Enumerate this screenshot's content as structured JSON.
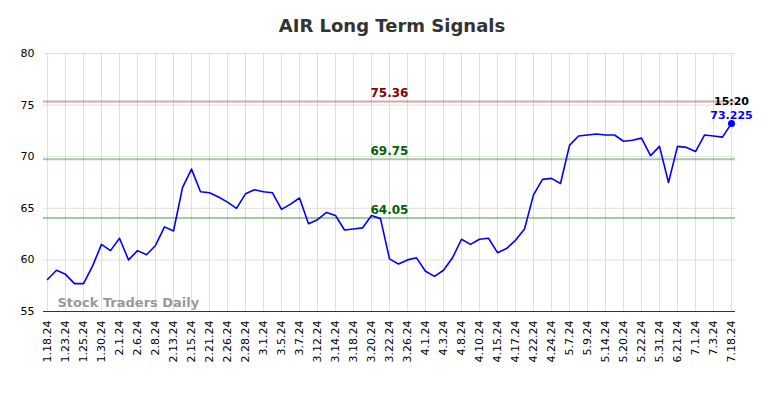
{
  "chart_data": {
    "type": "line",
    "title": "AIR Long Term Signals",
    "categories": [
      "1.18.24",
      null,
      "1.23.24",
      null,
      "1.25.24",
      null,
      "1.30.24",
      null,
      "2.1.24",
      null,
      "2.6.24",
      null,
      "2.8.24",
      null,
      "2.13.24",
      null,
      "2.15.24",
      null,
      "2.21.24",
      null,
      "2.26.24",
      null,
      "2.28.24",
      null,
      "3.1.24",
      null,
      "3.5.24",
      null,
      "3.7.24",
      null,
      "3.12.24",
      null,
      "3.14.24",
      null,
      "3.18.24",
      null,
      "3.20.24",
      null,
      "3.22.24",
      null,
      "3.26.24",
      null,
      "4.1.24",
      null,
      "4.3.24",
      null,
      "4.8.24",
      null,
      "4.10.24",
      null,
      "4.15.24",
      null,
      "4.17.24",
      null,
      "4.22.24",
      null,
      "4.24.24",
      null,
      "5.7.24",
      null,
      "5.9.24",
      null,
      "5.14.24",
      null,
      "5.20.24",
      null,
      "5.22.24",
      null,
      "5.31.24",
      null,
      "6.21.24",
      null,
      "7.1.24",
      null,
      "7.3.24",
      null,
      "7.18.24"
    ],
    "values": [
      58.1,
      59.0,
      58.6,
      57.7,
      57.7,
      59.4,
      61.5,
      60.9,
      62.1,
      60.0,
      60.9,
      60.5,
      61.4,
      63.2,
      62.8,
      67.0,
      68.8,
      66.6,
      66.5,
      66.1,
      65.6,
      65.0,
      66.4,
      66.8,
      66.6,
      66.5,
      64.9,
      65.4,
      66.0,
      63.5,
      63.9,
      64.6,
      64.3,
      62.9,
      63.0,
      63.1,
      64.3,
      64.0,
      60.1,
      59.6,
      60.0,
      60.2,
      58.9,
      58.4,
      59.0,
      60.2,
      62.0,
      61.5,
      62.0,
      62.1,
      60.7,
      61.1,
      61.9,
      63.0,
      66.3,
      67.8,
      67.9,
      67.4,
      71.1,
      72.0,
      72.1,
      72.2,
      72.1,
      72.1,
      71.5,
      71.6,
      71.8,
      70.1,
      71.0,
      67.5,
      71.0,
      70.9,
      70.5,
      72.1,
      72.0,
      71.9,
      73.225
    ],
    "color": "#0000ff",
    "ylim": [
      55,
      80
    ],
    "yticks": [
      55,
      60,
      65,
      70,
      75,
      80
    ],
    "grid": true,
    "reference_lines": [
      {
        "value": 75.36,
        "color": "#8b0000"
      },
      {
        "value": 69.75,
        "color": "#006400"
      },
      {
        "value": 64.05,
        "color": "#006400"
      }
    ],
    "last_time": "15:20",
    "watermark": "Stock Traders Daily"
  }
}
